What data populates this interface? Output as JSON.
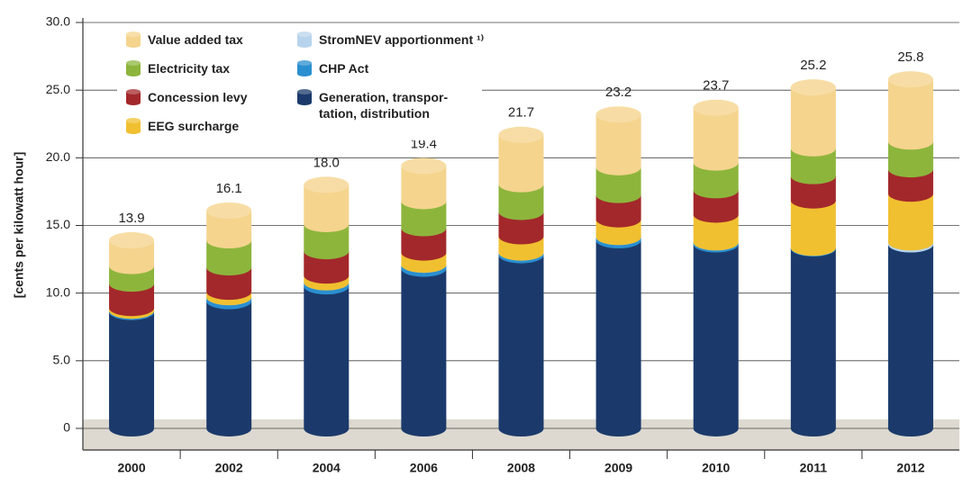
{
  "chart_data": {
    "type": "stacked-cylinder",
    "y_label": "[cents per kilowatt hour]",
    "categories": [
      "2000",
      "2002",
      "2004",
      "2006",
      "2008",
      "2009",
      "2010",
      "2011",
      "2012"
    ],
    "series": [
      {
        "name": "Generation, transpor-tation, distribution",
        "color": "#1b3a6b",
        "values": [
          8.6,
          9.4,
          10.5,
          11.8,
          12.8,
          13.9,
          13.6,
          13.3,
          13.6
        ]
      },
      {
        "name": "CHP Act",
        "color": "#2a8fd0",
        "values": [
          0.1,
          0.3,
          0.3,
          0.3,
          0.2,
          0.25,
          0.15,
          0.05,
          0.0
        ]
      },
      {
        "name": "StromNEV apportionment ¹⁾",
        "color": "#b8d4ec",
        "values": [
          0,
          0,
          0,
          0,
          0,
          0,
          0,
          0,
          0.15
        ]
      },
      {
        "name": "EEG surcharge",
        "color": "#f0c030",
        "values": [
          0.2,
          0.4,
          0.5,
          0.9,
          1.2,
          1.3,
          2.05,
          3.5,
          3.6
        ]
      },
      {
        "name": "Concession levy",
        "color": "#a3282b",
        "values": [
          1.8,
          1.8,
          1.8,
          1.8,
          1.8,
          1.8,
          1.8,
          1.8,
          1.8
        ]
      },
      {
        "name": "Electricity tax",
        "color": "#8db53c",
        "values": [
          1.3,
          2.0,
          2.0,
          2.0,
          2.05,
          2.05,
          2.05,
          2.05,
          2.05
        ]
      },
      {
        "name": "Value added tax",
        "color": "#f5d48e",
        "values": [
          1.9,
          2.2,
          2.9,
          2.6,
          3.65,
          3.9,
          4.05,
          4.5,
          4.6
        ]
      }
    ],
    "totals": [
      13.9,
      16.1,
      18.0,
      19.4,
      21.7,
      23.2,
      23.7,
      25.2,
      25.8
    ],
    "value_labels": [
      "13.9",
      "16.1",
      "18.0",
      "19.4",
      "21.7",
      "23.2",
      "23.7",
      "25.2",
      "25.8"
    ],
    "ylim": [
      -1.6,
      30
    ],
    "yticks": [
      0,
      {
        "value": 5,
        "label": "5.0"
      },
      {
        "value": 10,
        "label": "10.0"
      },
      {
        "value": 15,
        "label": "15.0"
      },
      {
        "value": 20,
        "label": "20.0"
      },
      {
        "value": 25,
        "label": "25.0"
      },
      {
        "value": 30,
        "label": "30.0"
      }
    ],
    "grid": true
  }
}
